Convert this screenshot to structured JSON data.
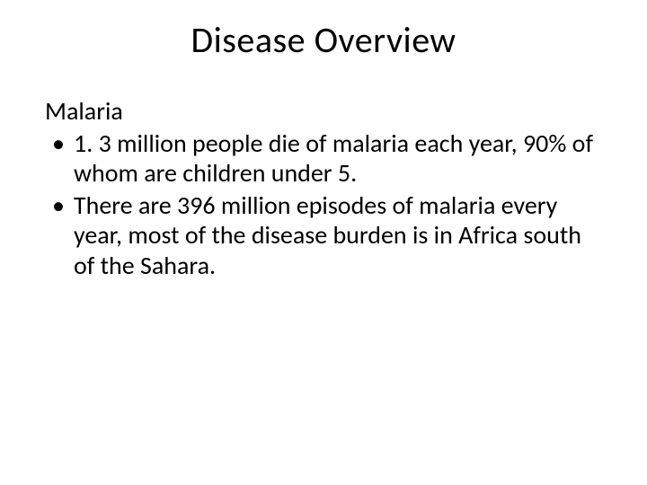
{
  "slide": {
    "title": "Disease Overview",
    "subheading": "Malaria",
    "bullets": [
      "1. 3 million people die of malaria each year, 90% of whom are children under 5.",
      "There are 396 million episodes of malaria every year, most of the disease burden is in Africa south of the Sahara."
    ],
    "background_color": "#ffffff",
    "text_color": "#000000",
    "title_fontsize": 40,
    "body_fontsize": 28
  }
}
